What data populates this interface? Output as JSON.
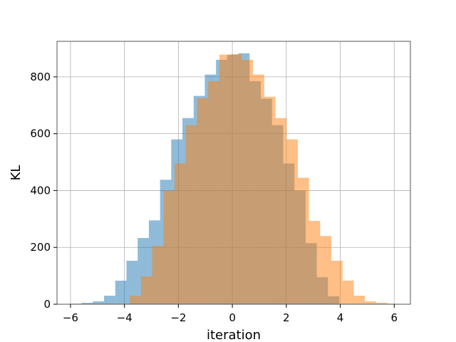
{
  "chart_data": {
    "type": "bar",
    "title": "",
    "xlabel": "iteration",
    "ylabel": "KL",
    "xlim": [
      -6.5,
      6.6
    ],
    "ylim": [
      0,
      925
    ],
    "grid": true,
    "xticks": [
      -6,
      -4,
      -2,
      0,
      2,
      4,
      6
    ],
    "yticks": [
      0,
      200,
      400,
      600,
      800
    ],
    "bin_width": 0.415,
    "series": [
      {
        "color": "#1f77b4",
        "alpha": 0.5,
        "bin_starts": [
          -6.0,
          -5.585,
          -5.17,
          -4.755,
          -4.34,
          -3.925,
          -3.51,
          -3.095,
          -2.68,
          -2.265,
          -1.85,
          -1.435,
          -1.02,
          -0.605,
          -0.19,
          0.225,
          0.64,
          1.055,
          1.47,
          1.885,
          2.3,
          2.715,
          3.13,
          3.545
        ],
        "values": [
          2,
          5,
          10,
          30,
          83,
          153,
          233,
          295,
          438,
          580,
          655,
          733,
          808,
          860,
          878,
          883,
          785,
          723,
          630,
          495,
          400,
          215,
          95,
          28
        ]
      },
      {
        "color": "#ff7f0e",
        "alpha": 0.5,
        "bin_starts": [
          -3.8,
          -3.385,
          -2.97,
          -2.555,
          -2.14,
          -1.725,
          -1.31,
          -0.895,
          -0.48,
          -0.065,
          0.35,
          0.765,
          1.18,
          1.595,
          2.01,
          2.425,
          2.84,
          3.255,
          3.67,
          4.085,
          4.5,
          4.915,
          5.33,
          5.745
        ],
        "values": [
          30,
          98,
          205,
          400,
          495,
          630,
          725,
          785,
          878,
          880,
          860,
          808,
          730,
          655,
          580,
          445,
          293,
          240,
          153,
          83,
          30,
          10,
          5,
          2
        ]
      }
    ]
  }
}
